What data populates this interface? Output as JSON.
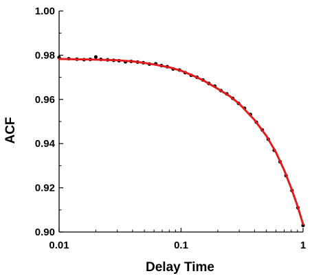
{
  "chart_data": {
    "type": "line",
    "title": "",
    "xlabel": "Delay Time",
    "ylabel": "ACF",
    "x_scale": "log",
    "xlim": [
      0.01,
      1
    ],
    "ylim": [
      0.9,
      1.0
    ],
    "x_ticks": [
      0.01,
      0.1,
      1
    ],
    "x_tick_labels": [
      "0.01",
      "0.1",
      "1"
    ],
    "y_ticks": [
      0.9,
      0.92,
      0.94,
      0.96,
      0.98,
      1.0
    ],
    "y_tick_labels": [
      "0.90",
      "0.92",
      "0.94",
      "0.96",
      "0.98",
      "1.00"
    ],
    "grid": false,
    "series": [
      {
        "kind": "scatter",
        "color": "#000000",
        "points": [
          [
            0.01,
            0.979
          ],
          [
            0.012,
            0.9784
          ],
          [
            0.014,
            0.9782
          ],
          [
            0.016,
            0.978
          ],
          [
            0.018,
            0.9781
          ],
          [
            0.02,
            0.9792
          ],
          [
            0.022,
            0.9781
          ],
          [
            0.025,
            0.9779
          ],
          [
            0.028,
            0.9777
          ],
          [
            0.031,
            0.9775
          ],
          [
            0.035,
            0.977
          ],
          [
            0.039,
            0.9772
          ],
          [
            0.044,
            0.9769
          ],
          [
            0.049,
            0.9766
          ],
          [
            0.055,
            0.976
          ],
          [
            0.062,
            0.9761
          ],
          [
            0.069,
            0.9753
          ],
          [
            0.077,
            0.9748
          ],
          [
            0.086,
            0.9738
          ],
          [
            0.097,
            0.9733
          ],
          [
            0.108,
            0.9721
          ],
          [
            0.121,
            0.9709
          ],
          [
            0.135,
            0.97
          ],
          [
            0.151,
            0.9688
          ],
          [
            0.169,
            0.9672
          ],
          [
            0.189,
            0.966
          ],
          [
            0.212,
            0.964
          ],
          [
            0.237,
            0.9625
          ],
          [
            0.265,
            0.9605
          ],
          [
            0.296,
            0.9582
          ],
          [
            0.331,
            0.956
          ],
          [
            0.37,
            0.9532
          ],
          [
            0.414,
            0.9497
          ],
          [
            0.463,
            0.9462
          ],
          [
            0.518,
            0.942
          ],
          [
            0.58,
            0.937
          ],
          [
            0.648,
            0.9318
          ],
          [
            0.725,
            0.9255
          ],
          [
            0.811,
            0.9188
          ],
          [
            0.907,
            0.911
          ],
          [
            1.0,
            0.903
          ]
        ]
      },
      {
        "kind": "line",
        "color": "#e31a1c",
        "points": [
          [
            0.01,
            0.9783
          ],
          [
            0.015,
            0.9781
          ],
          [
            0.02,
            0.978
          ],
          [
            0.03,
            0.9777
          ],
          [
            0.04,
            0.9772
          ],
          [
            0.05,
            0.9765
          ],
          [
            0.06,
            0.9758
          ],
          [
            0.07,
            0.9751
          ],
          [
            0.08,
            0.9745
          ],
          [
            0.1,
            0.973
          ],
          [
            0.12,
            0.9712
          ],
          [
            0.15,
            0.9688
          ],
          [
            0.2,
            0.9648
          ],
          [
            0.25,
            0.9615
          ],
          [
            0.3,
            0.958
          ],
          [
            0.4,
            0.9507
          ],
          [
            0.5,
            0.9435
          ],
          [
            0.6,
            0.936
          ],
          [
            0.7,
            0.928
          ],
          [
            0.8,
            0.9198
          ],
          [
            0.9,
            0.9118
          ],
          [
            1.0,
            0.9035
          ]
        ]
      }
    ]
  }
}
